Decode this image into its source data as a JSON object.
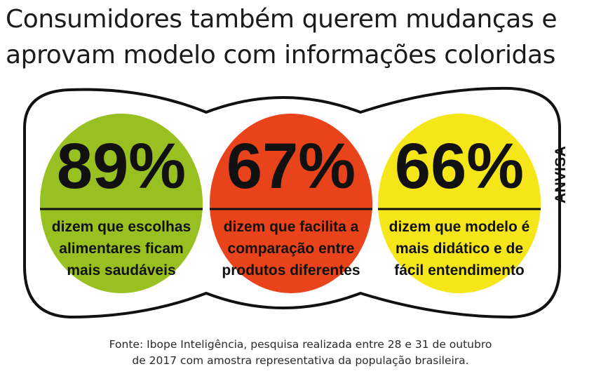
{
  "title": {
    "line1": "Consumidores também querem mudanças e",
    "line2": "aprovam modelo com informações coloridas"
  },
  "chart_data": {
    "type": "infographic",
    "unit": "%",
    "items": [
      {
        "value": 89,
        "label": "89%",
        "lines": [
          "dizem que escolhas",
          "alimentares ficam",
          "mais saudáveis"
        ],
        "color": "#98c020"
      },
      {
        "value": 67,
        "label": "67%",
        "lines": [
          "dizem que facilita a",
          "comparação entre",
          "produtos diferentes"
        ],
        "color": "#e8431a"
      },
      {
        "value": 66,
        "label": "66%",
        "lines": [
          "dizem que modelo é",
          "mais didático e de",
          "fácil entendimento"
        ],
        "color": "#f5e619"
      }
    ]
  },
  "brand": "ANVISA",
  "source": {
    "line1": "Fonte: Ibope Inteligência, pesquisa realizada entre 28 e 31 de outubro",
    "line2": "de 2017 com amostra representativa da população brasileira."
  }
}
